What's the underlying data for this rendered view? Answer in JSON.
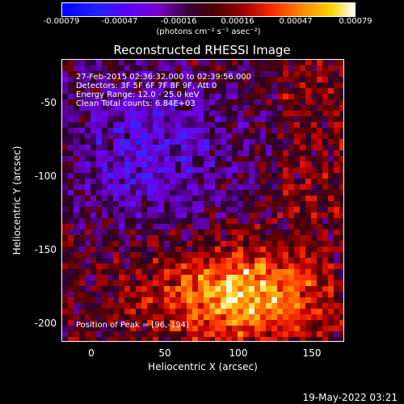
{
  "colorbar": {
    "ticks": [
      "-0.00079",
      "-0.00047",
      "-0.00016",
      "0.00016",
      "0.00047",
      "0.00079"
    ],
    "unit_label": "(photons cm⁻² s⁻¹ asec⁻²)"
  },
  "title": "Reconstructed RHESSI Image",
  "info": {
    "time_range": "27-Feb-2015 02:36:32.000 to 02:39:56.000",
    "detectors": "Detectors: 3F 5F 6F 7F 8F 9F, Att 0",
    "energy": "Energy Range: 12.0 - 25.0 keV",
    "method": "Clean     Total counts: 6.84E+03",
    "peak": "Position of Peak = [96,-194]"
  },
  "axes": {
    "xlabel": "Heliocentric X (arcsec)",
    "ylabel": "Heliocentric Y (arcsec)",
    "xticks": [
      "0",
      "50",
      "100",
      "150"
    ],
    "yticks": [
      "-50",
      "-100",
      "-150",
      "-200"
    ]
  },
  "footer": "19-May-2022 03:21"
}
